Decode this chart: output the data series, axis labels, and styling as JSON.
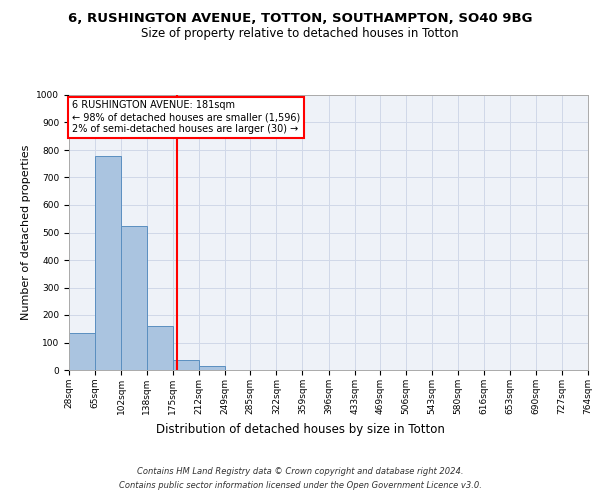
{
  "title_line1": "6, RUSHINGTON AVENUE, TOTTON, SOUTHAMPTON, SO40 9BG",
  "title_line2": "Size of property relative to detached houses in Totton",
  "xlabel": "Distribution of detached houses by size in Totton",
  "ylabel": "Number of detached properties",
  "footer_line1": "Contains HM Land Registry data © Crown copyright and database right 2024.",
  "footer_line2": "Contains public sector information licensed under the Open Government Licence v3.0.",
  "bin_edges": [
    28,
    65,
    102,
    138,
    175,
    212,
    249,
    285,
    322,
    359,
    396,
    433,
    469,
    506,
    543,
    580,
    616,
    653,
    690,
    727,
    764
  ],
  "bar_heights": [
    133,
    778,
    524,
    159,
    37,
    14,
    0,
    0,
    0,
    0,
    0,
    0,
    0,
    0,
    0,
    0,
    0,
    0,
    0,
    0
  ],
  "bar_color": "#aac4e0",
  "bar_edge_color": "#5a8fc0",
  "property_size": 181,
  "annotation_text": "6 RUSHINGTON AVENUE: 181sqm\n← 98% of detached houses are smaller (1,596)\n2% of semi-detached houses are larger (30) →",
  "annotation_box_color": "white",
  "annotation_box_edge_color": "red",
  "vline_color": "red",
  "ylim": [
    0,
    1000
  ],
  "yticks": [
    0,
    100,
    200,
    300,
    400,
    500,
    600,
    700,
    800,
    900,
    1000
  ],
  "grid_color": "#d0d8e8",
  "background_color": "#eef2f8",
  "title_fontsize": 9.5,
  "subtitle_fontsize": 8.5,
  "axis_label_fontsize": 8,
  "tick_fontsize": 6.5,
  "annotation_fontsize": 7,
  "footer_fontsize": 6
}
